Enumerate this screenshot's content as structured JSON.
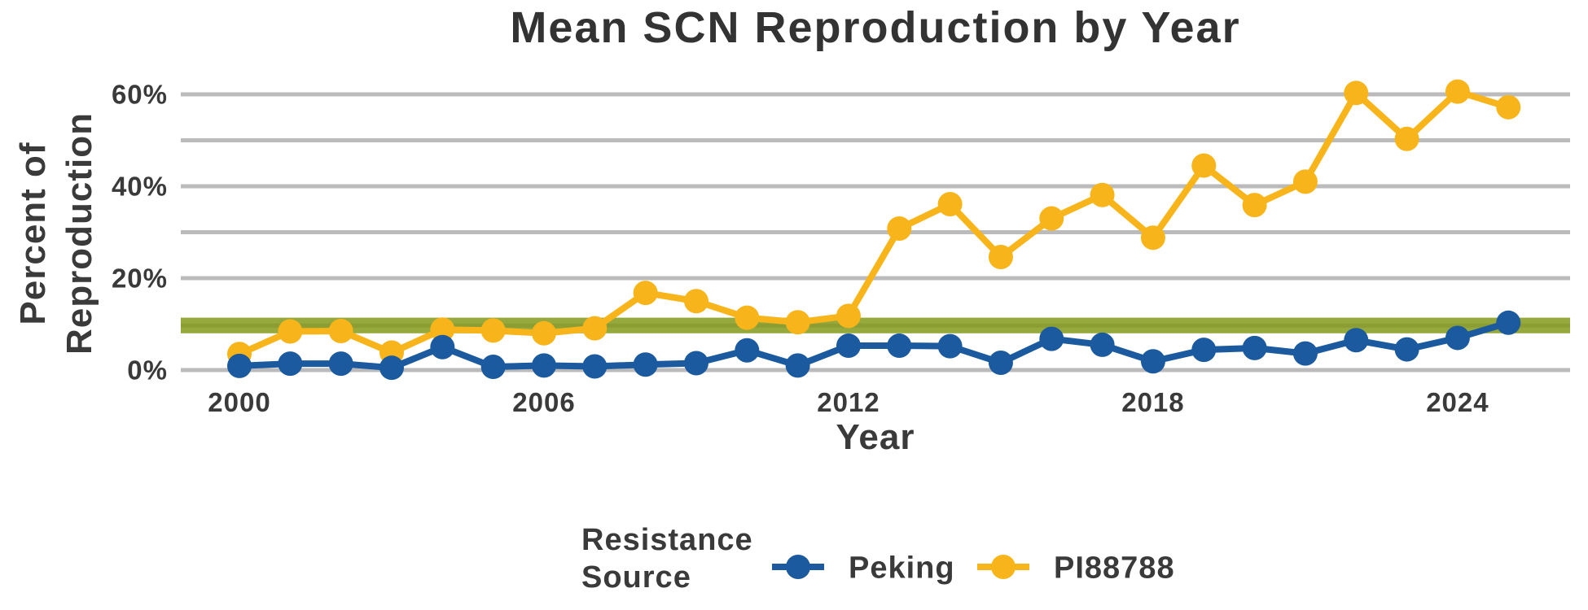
{
  "title": "Mean SCN Reproduction by Year",
  "y_axis": {
    "label_line1": "Percent of",
    "label_line2": "Reproduction",
    "tick_labels": [
      "60%",
      "40%",
      "20%",
      "0%"
    ]
  },
  "x_axis": {
    "label": "Year",
    "tick_labels": [
      "2000",
      "2006",
      "2012",
      "2018",
      "2024"
    ]
  },
  "legend": {
    "title_line1": "Resistance",
    "title_line2": "Source",
    "items": [
      {
        "label": "Peking",
        "color": "#1B5A9E"
      },
      {
        "label": "PI88788",
        "color": "#F8B51B"
      }
    ]
  },
  "colors": {
    "gridline": "#BBBBBB",
    "band_fill": "#95A93C",
    "band_stripe": "#8C9E33",
    "text_dark": "#333333"
  },
  "chart_data": {
    "type": "line",
    "title": "Mean SCN Reproduction by Year",
    "xlabel": "Year",
    "ylabel": "Percent of Reproduction",
    "x": [
      2000,
      2001,
      2002,
      2003,
      2004,
      2005,
      2006,
      2007,
      2008,
      2009,
      2010,
      2011,
      2012,
      2013,
      2014,
      2015,
      2016,
      2017,
      2018,
      2019,
      2020,
      2021,
      2022,
      2023,
      2024,
      2025
    ],
    "series": [
      {
        "name": "Peking",
        "color": "#1B5A9E",
        "values": [
          0.9,
          1.4,
          1.4,
          0.5,
          5.0,
          0.7,
          1.0,
          0.8,
          1.2,
          1.5,
          4.3,
          1.0,
          5.3,
          5.3,
          5.2,
          1.6,
          6.8,
          5.5,
          1.9,
          4.4,
          4.8,
          3.6,
          6.5,
          4.5,
          7.0,
          10.3
        ]
      },
      {
        "name": "PI88788",
        "color": "#F8B51B",
        "values": [
          3.5,
          8.4,
          8.5,
          3.8,
          8.8,
          8.6,
          8.0,
          9.1,
          16.8,
          15.0,
          11.4,
          10.4,
          11.8,
          30.8,
          36.1,
          24.6,
          33.0,
          38.1,
          28.8,
          44.5,
          35.9,
          41.0,
          60.3,
          50.3,
          60.6,
          57.2
        ]
      }
    ],
    "x_ticks": [
      2000,
      2006,
      2012,
      2018,
      2024
    ],
    "y_ticks_labeled": [
      60,
      40,
      20,
      0
    ],
    "gridlines": [
      0,
      10,
      20,
      30,
      40,
      50,
      60
    ],
    "ylim": [
      0,
      63
    ],
    "xlim": [
      1998.8,
      2026.2
    ],
    "threshold_band": {
      "from": 8.0,
      "to": 11.4
    },
    "grid": true,
    "legend_position": "bottom"
  }
}
